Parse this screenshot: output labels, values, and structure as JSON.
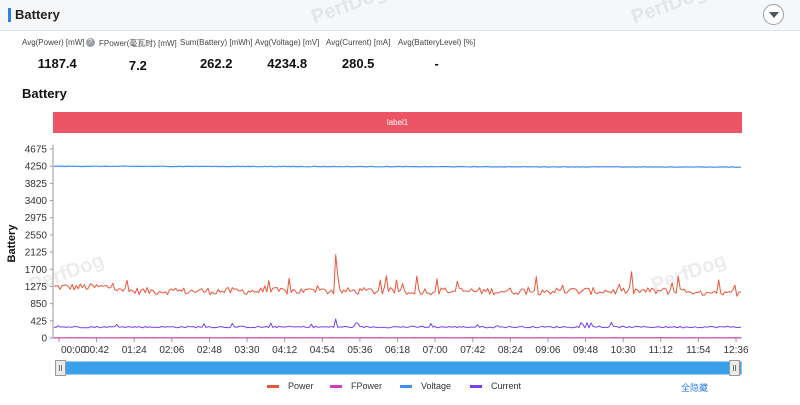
{
  "header": {
    "title": "Battery"
  },
  "watermark": "PerfDog",
  "stats": [
    {
      "label": "Avg(Power) [mW]",
      "value": "1187.4",
      "help": true
    },
    {
      "label": "FPower(毫瓦时) [mW]",
      "value": "7.2"
    },
    {
      "label": "Sum(Battery) [mWh]",
      "value": "262.2"
    },
    {
      "label": "Avg(Voltage) [mV]",
      "value": "4234.8"
    },
    {
      "label": "Avg(Current) [mA]",
      "value": "280.5"
    },
    {
      "label": "Avg(BatteryLevel) [%]",
      "value": "-"
    }
  ],
  "section_title": "Battery",
  "label_bar": "label1",
  "legend_toggle": "全隐藏",
  "colors": {
    "power": "#e8573a",
    "fpower": "#d23cb4",
    "voltage": "#3f8ef0",
    "current": "#7a3ff0",
    "label_bar": "#ec5565",
    "slider": "#3aa0ea"
  },
  "chart_data": {
    "type": "line",
    "ylabel": "Battery",
    "xlabel": "",
    "y_ticks": [
      0,
      425,
      850,
      1275,
      1700,
      2125,
      2550,
      2975,
      3400,
      3825,
      4250,
      4675
    ],
    "ylim": [
      0,
      4675
    ],
    "x_ticks": [
      "00:00",
      "00:42",
      "01:24",
      "02:06",
      "02:48",
      "03:30",
      "04:12",
      "04:54",
      "05:36",
      "06:18",
      "07:00",
      "07:42",
      "08:24",
      "09:06",
      "09:48",
      "10:30",
      "11:12",
      "11:54",
      "12:36"
    ],
    "x_duration_sec": 780,
    "grid": false,
    "legend_position": "bottom",
    "series": [
      {
        "name": "Power",
        "approx_level": 1150,
        "range": [
          1000,
          2050
        ]
      },
      {
        "name": "FPower",
        "approx_level": 7
      },
      {
        "name": "Voltage",
        "approx_level": 4240
      },
      {
        "name": "Current",
        "approx_level": 275,
        "range": [
          230,
          470
        ]
      }
    ]
  }
}
